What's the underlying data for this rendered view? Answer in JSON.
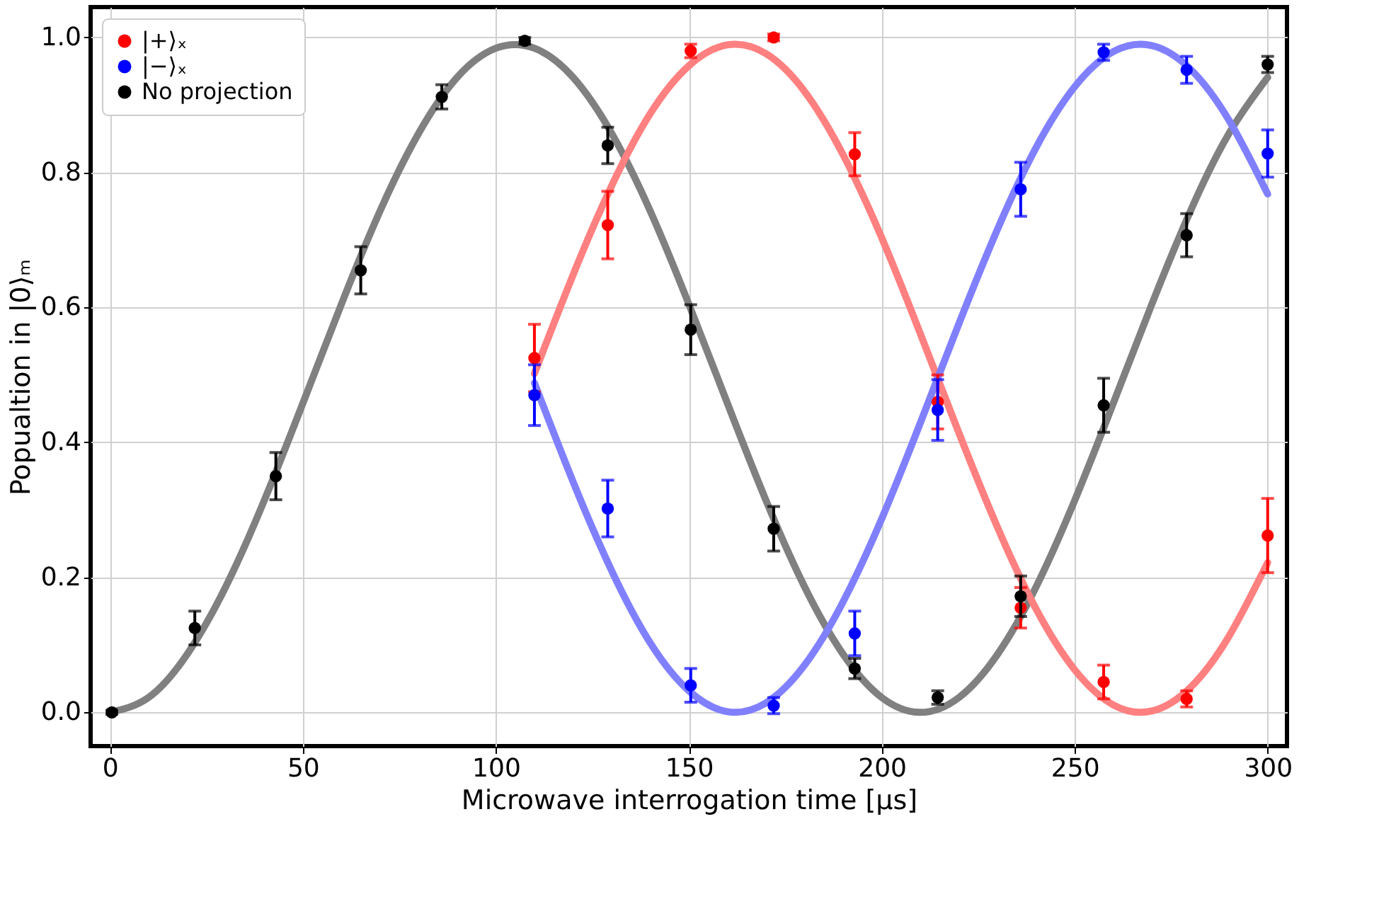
{
  "chart_data": {
    "type": "scatter",
    "xlabel": "Microwave interrogation time [μs]",
    "ylabel": "Popualtion in |0⟩ₘ",
    "xlim": [
      -5,
      305
    ],
    "ylim": [
      -0.05,
      1.045
    ],
    "xticks": [
      0,
      50,
      100,
      150,
      200,
      250,
      300
    ],
    "yticks": [
      {
        "value": 0,
        "label": "0.0"
      },
      0.2,
      0.4,
      0.6,
      0.8,
      {
        "value": 1,
        "label": "1.0"
      }
    ],
    "grid": true,
    "legend": "top left",
    "marker": "circle",
    "series": [
      {
        "type": "line",
        "marker": "none",
        "line_style": "solid",
        "color": "#808080",
        "x": [
          0,
          10,
          20,
          30,
          40,
          50,
          60,
          70,
          80,
          90,
          100,
          110,
          120,
          130,
          140,
          150,
          160,
          170,
          180,
          190,
          200,
          210,
          220,
          230,
          240,
          250,
          260,
          270,
          280,
          290,
          300
        ],
        "values": [
          0,
          0.022,
          0.086,
          0.186,
          0.314,
          0.458,
          0.605,
          0.743,
          0.858,
          0.941,
          0.984,
          0.984,
          0.941,
          0.858,
          0.743,
          0.605,
          0.458,
          0.314,
          0.186,
          0.086,
          0.022,
          0,
          0.022,
          0.086,
          0.186,
          0.314,
          0.458,
          0.605,
          0.743,
          0.858,
          0.941
        ]
      },
      {
        "type": "line",
        "marker": "none",
        "line_style": "solid",
        "color": "#ff8080",
        "x": [
          110,
          120,
          130,
          140,
          150,
          160,
          170,
          180,
          190,
          200,
          210,
          220,
          230,
          240,
          250,
          260,
          270,
          280,
          290,
          300
        ],
        "values": [
          0.502,
          0.648,
          0.78,
          0.887,
          0.958,
          0.989,
          0.976,
          0.92,
          0.826,
          0.703,
          0.561,
          0.414,
          0.274,
          0.153,
          0.063,
          0.011,
          0.002,
          0.037,
          0.113,
          0.222
        ]
      },
      {
        "type": "line",
        "marker": "none",
        "line_style": "solid",
        "color": "#8080ff",
        "x": [
          110,
          120,
          130,
          140,
          150,
          160,
          170,
          180,
          190,
          200,
          210,
          220,
          230,
          240,
          250,
          260,
          270,
          280,
          290,
          300
        ],
        "values": [
          0.488,
          0.342,
          0.21,
          0.103,
          0.032,
          0.001,
          0.014,
          0.07,
          0.164,
          0.287,
          0.429,
          0.576,
          0.716,
          0.837,
          0.927,
          0.979,
          0.988,
          0.953,
          0.877,
          0.768
        ]
      },
      {
        "name": "|+⟩ₓ",
        "color": "#ff0000",
        "x": [
          110,
          129,
          150.5,
          172,
          193,
          214.5,
          236,
          257.5,
          279,
          300
        ],
        "values": [
          0.525,
          0.722,
          0.98,
          1.0,
          0.827,
          0.46,
          0.155,
          0.045,
          0.02,
          0.262
        ],
        "errors": [
          0.05,
          0.05,
          0.01,
          0.005,
          0.032,
          0.04,
          0.03,
          0.025,
          0.012,
          0.055
        ]
      },
      {
        "name": "|−⟩ₓ",
        "color": "#0000ff",
        "x": [
          110,
          129,
          150.5,
          172,
          193,
          214.5,
          236,
          257.5,
          279,
          300
        ],
        "values": [
          0.47,
          0.302,
          0.04,
          0.01,
          0.117,
          0.448,
          0.775,
          0.978,
          0.952,
          0.828
        ],
        "errors": [
          0.045,
          0.042,
          0.025,
          0.012,
          0.033,
          0.045,
          0.04,
          0.012,
          0.02,
          0.035
        ]
      },
      {
        "name": "No projection",
        "color": "#000000",
        "x": [
          0.5,
          22,
          43,
          65,
          86,
          107.5,
          129,
          150.5,
          172,
          193,
          214.5,
          236,
          257.5,
          279,
          300
        ],
        "values": [
          0.0,
          0.125,
          0.35,
          0.655,
          0.912,
          0.995,
          0.84,
          0.567,
          0.272,
          0.065,
          0.022,
          0.172,
          0.455,
          0.707,
          0.96
        ],
        "errors": [
          0.003,
          0.025,
          0.035,
          0.035,
          0.018,
          0.005,
          0.027,
          0.037,
          0.033,
          0.015,
          0.01,
          0.03,
          0.04,
          0.032,
          0.012
        ]
      }
    ]
  }
}
